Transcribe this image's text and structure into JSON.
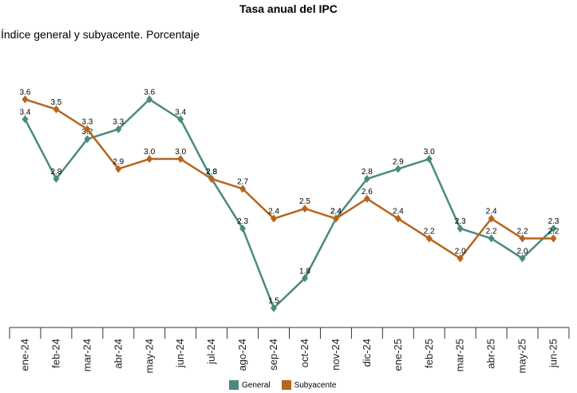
{
  "header": {
    "title": "Tasa anual del IPC",
    "subtitle": "Índice general y subyacente. Porcentaje"
  },
  "legend": {
    "general_label": "General",
    "subyacente_label": "Subyacente"
  },
  "colors": {
    "general": "#4a8a7e",
    "subyacente": "#b5651d"
  },
  "chart_data": {
    "type": "line",
    "title": "Tasa anual del IPC",
    "subtitle": "Índice general y subyacente. Porcentaje",
    "categories": [
      "ene-24",
      "feb-24",
      "mar-24",
      "abr-24",
      "may-24",
      "jun-24",
      "jul-24",
      "ago-24",
      "sep-24",
      "oct-24",
      "nov-24",
      "dic-24",
      "ene-25",
      "feb-25",
      "mar-25",
      "abr-25",
      "may-25",
      "jun-25"
    ],
    "series": [
      {
        "name": "General",
        "values": [
          3.4,
          2.8,
          3.2,
          3.3,
          3.6,
          3.4,
          2.8,
          2.3,
          1.5,
          1.8,
          2.4,
          2.8,
          2.9,
          3.0,
          2.3,
          2.2,
          2.0,
          2.3
        ]
      },
      {
        "name": "Subyacente",
        "values": [
          3.6,
          3.5,
          3.3,
          2.9,
          3.0,
          3.0,
          2.8,
          2.7,
          2.4,
          2.5,
          2.4,
          2.6,
          2.4,
          2.2,
          2.0,
          2.4,
          2.2,
          2.2
        ]
      }
    ],
    "xlabel": "",
    "ylabel": "",
    "ylim": [
      1.4,
      3.7
    ],
    "grid": false,
    "legend_position": "bottom"
  }
}
